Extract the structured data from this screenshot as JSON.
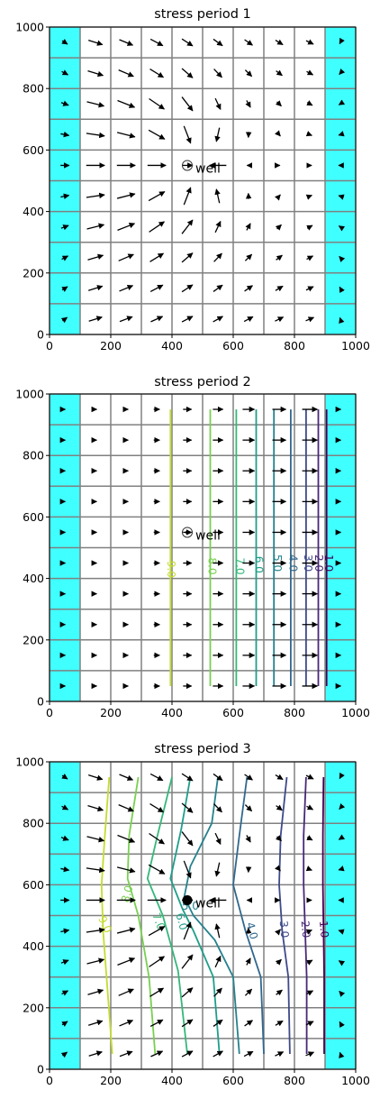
{
  "figure": {
    "background": "#ffffff"
  },
  "chart_data": [
    {
      "type": "contour",
      "title": "stress period 1",
      "xlim": [
        0,
        1000
      ],
      "ylim": [
        0,
        1000
      ],
      "xticks": [
        0,
        200,
        400,
        600,
        800,
        1000
      ],
      "yticks": [
        0,
        200,
        400,
        600,
        800,
        1000
      ],
      "grid": {
        "ncol": 10,
        "nrow": 10,
        "cell_size": 100,
        "line_color": "#808080"
      },
      "constant_head_columns": [
        0,
        9
      ],
      "constant_head_color": "#40ffff",
      "well": {
        "x": 450,
        "y": 550,
        "label": "well",
        "marker": "open-circle"
      },
      "contours": [],
      "vectors": []
    },
    {
      "type": "contour",
      "title": "stress period 2",
      "xlim": [
        0,
        1000
      ],
      "ylim": [
        0,
        1000
      ],
      "xticks": [
        0,
        200,
        400,
        600,
        800,
        1000
      ],
      "yticks": [
        0,
        200,
        400,
        600,
        800,
        1000
      ],
      "grid": {
        "ncol": 10,
        "nrow": 10,
        "cell_size": 100,
        "line_color": "#808080"
      },
      "constant_head_columns": [
        0,
        9
      ],
      "constant_head_color": "#40ffff",
      "well": {
        "x": 450,
        "y": 550,
        "label": "well",
        "marker": "open-circle-dot"
      },
      "contours": [
        {
          "level": "9.0",
          "color": "#c5dc32",
          "points": [
            [
              395,
              950
            ],
            [
              395,
              50
            ]
          ],
          "label_at": [
            395,
            430
          ],
          "label_rot": 90
        },
        {
          "level": "8.0",
          "color": "#78d051",
          "points": [
            [
              525,
              950
            ],
            [
              525,
              50
            ]
          ],
          "label_at": [
            530,
            440
          ],
          "label_rot": 90
        },
        {
          "level": "7.0",
          "color": "#35b779",
          "points": [
            [
              610,
              950
            ],
            [
              610,
              50
            ]
          ],
          "label_at": [
            620,
            440
          ],
          "label_rot": 90
        },
        {
          "level": "6.0",
          "color": "#1f9e89",
          "points": [
            [
              675,
              950
            ],
            [
              675,
              50
            ]
          ],
          "label_at": [
            682,
            445
          ],
          "label_rot": 90
        },
        {
          "level": "5.0",
          "color": "#26828e",
          "points": [
            [
              733,
              950
            ],
            [
              733,
              50
            ]
          ],
          "label_at": [
            742,
            450
          ],
          "label_rot": 90
        },
        {
          "level": "4.0",
          "color": "#31688e",
          "points": [
            [
              788,
              950
            ],
            [
              788,
              50
            ]
          ],
          "label_at": [
            794,
            450
          ],
          "label_rot": 90
        },
        {
          "level": "3.0",
          "color": "#3e4a89",
          "points": [
            [
              838,
              950
            ],
            [
              838,
              50
            ]
          ],
          "label_at": [
            843,
            450
          ],
          "label_rot": 90
        },
        {
          "level": "2.0",
          "color": "#482878",
          "points": [
            [
              878,
              950
            ],
            [
              878,
              50
            ]
          ],
          "label_at": [
            878,
            450
          ],
          "label_rot": 90
        },
        {
          "level": "1.0",
          "color": "#440154",
          "points": [
            [
              905,
              950
            ],
            [
              905,
              50
            ]
          ],
          "label_at": [
            910,
            450
          ],
          "label_rot": 90
        }
      ],
      "vectors": "uniform-east"
    },
    {
      "type": "contour",
      "title": "stress period 3",
      "xlim": [
        0,
        1000
      ],
      "ylim": [
        0,
        1000
      ],
      "xticks": [
        0,
        200,
        400,
        600,
        800,
        1000
      ],
      "yticks": [
        0,
        200,
        400,
        600,
        800,
        1000
      ],
      "grid": {
        "ncol": 10,
        "nrow": 10,
        "cell_size": 100,
        "line_color": "#808080"
      },
      "constant_head_columns": [
        0,
        9
      ],
      "constant_head_color": "#40ffff",
      "well": {
        "x": 450,
        "y": 550,
        "label": "well",
        "marker": "filled-circle"
      },
      "contours": [
        {
          "level": "9.0",
          "color": "#c5dc32",
          "points": [
            [
              195,
              950
            ],
            [
              180,
              750
            ],
            [
              170,
              600
            ],
            [
              175,
              450
            ],
            [
              190,
              250
            ],
            [
              205,
              50
            ]
          ],
          "label_at": [
            180,
            470
          ],
          "label_rot": 65
        },
        {
          "level": "8.0",
          "color": "#78d051",
          "points": [
            [
              290,
              950
            ],
            [
              260,
              760
            ],
            [
              255,
              620
            ],
            [
              290,
              500
            ],
            [
              325,
              300
            ],
            [
              345,
              50
            ]
          ],
          "label_at": [
            255,
            570
          ],
          "label_rot": -75
        },
        {
          "level": "7.0",
          "color": "#35b779",
          "points": [
            [
              400,
              950
            ],
            [
              350,
              750
            ],
            [
              320,
              620
            ],
            [
              370,
              500
            ],
            [
              420,
              320
            ],
            [
              450,
              50
            ]
          ],
          "label_at": [
            355,
            480
          ],
          "label_rot": 70
        },
        {
          "level": "6.0",
          "color": "#1f9e89",
          "points": [
            [
              460,
              950
            ],
            [
              430,
              780
            ],
            [
              395,
              620
            ],
            [
              435,
              520
            ],
            [
              470,
              450
            ],
            [
              535,
              300
            ],
            [
              555,
              50
            ]
          ],
          "label_at": [
            430,
            480
          ],
          "label_rot": 75
        },
        {
          "level": "5.0",
          "color": "#26828e",
          "points": [
            [
              550,
              950
            ],
            [
              530,
              800
            ],
            [
              460,
              660
            ],
            [
              440,
              560
            ],
            [
              470,
              500
            ],
            [
              540,
              420
            ],
            [
              600,
              300
            ],
            [
              620,
              50
            ]
          ],
          "label_at": [
            460,
            530
          ],
          "label_rot": 0
        },
        {
          "level": "4.0",
          "color": "#31688e",
          "points": [
            [
              645,
              950
            ],
            [
              620,
              760
            ],
            [
              600,
              600
            ],
            [
              640,
              450
            ],
            [
              690,
              300
            ],
            [
              700,
              50
            ]
          ],
          "label_at": [
            660,
            450
          ],
          "label_rot": 75
        },
        {
          "level": "3.0",
          "color": "#3e4a89",
          "points": [
            [
              775,
              950
            ],
            [
              755,
              760
            ],
            [
              750,
              600
            ],
            [
              760,
              450
            ],
            [
              780,
              300
            ],
            [
              785,
              50
            ]
          ],
          "label_at": [
            765,
            455
          ],
          "label_rot": 85
        },
        {
          "level": "2.0",
          "color": "#482878",
          "points": [
            [
              838,
              950
            ],
            [
              830,
              760
            ],
            [
              830,
              600
            ],
            [
              835,
              450
            ],
            [
              840,
              300
            ],
            [
              840,
              50
            ]
          ],
          "label_at": [
            835,
            455
          ],
          "label_rot": 85
        },
        {
          "level": "1.0",
          "color": "#440154",
          "points": [
            [
              895,
              950
            ],
            [
              893,
              760
            ],
            [
              893,
              600
            ],
            [
              895,
              450
            ],
            [
              897,
              300
            ],
            [
              897,
              50
            ]
          ],
          "label_at": [
            895,
            455
          ],
          "label_rot": 85
        }
      ],
      "vectors": "toward-well"
    }
  ]
}
